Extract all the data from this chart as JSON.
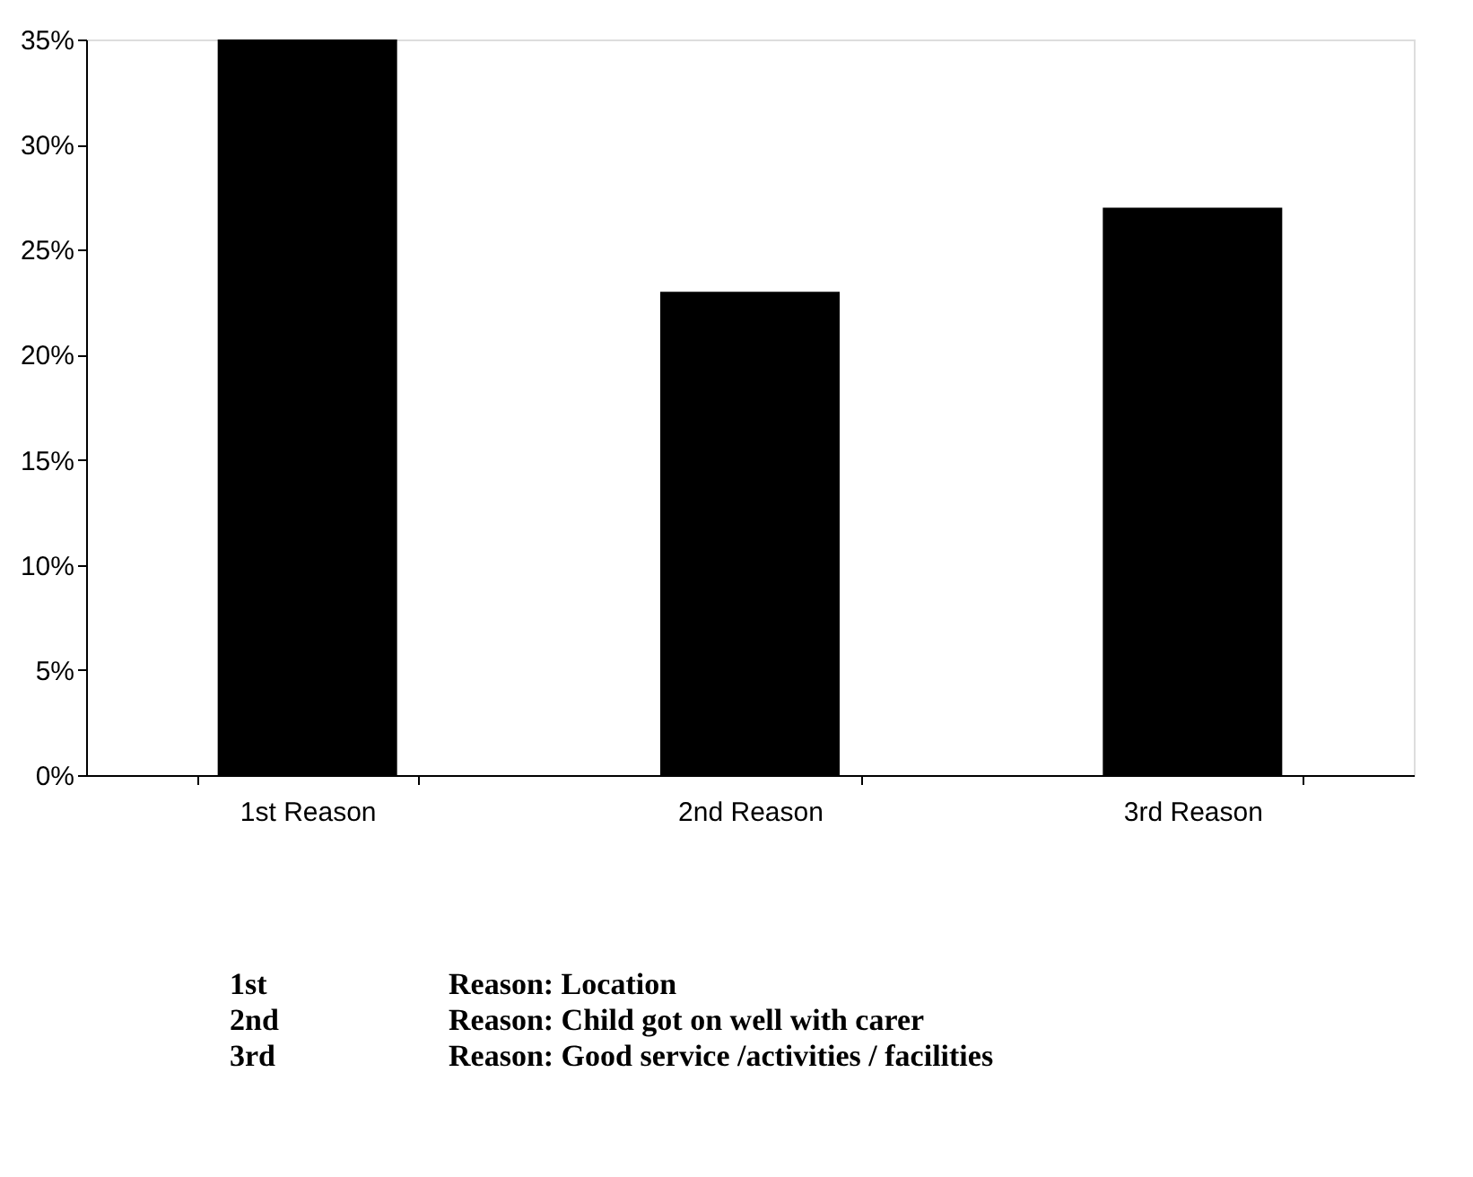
{
  "chart_data": {
    "type": "bar",
    "categories": [
      "1st Reason",
      "2nd Reason",
      "3rd Reason"
    ],
    "values": [
      35,
      23,
      27
    ],
    "color": "#000000",
    "ylim": [
      0,
      35
    ],
    "yticks": [
      {
        "value": 0,
        "label": "0%"
      },
      {
        "value": 5,
        "label": "5%"
      },
      {
        "value": 10,
        "label": "10%"
      },
      {
        "value": 15,
        "label": "15%"
      },
      {
        "value": 20,
        "label": "20%"
      },
      {
        "value": 25,
        "label": "25%"
      },
      {
        "value": 30,
        "label": "30%"
      },
      {
        "value": 35,
        "label": "35%"
      }
    ],
    "grid": false,
    "annotations": [
      "1st",
      "Reason: Location",
      "2nd",
      "Reason: Child got on well with carer",
      "3rd",
      "Reason: Good service /activities / facilities"
    ]
  }
}
